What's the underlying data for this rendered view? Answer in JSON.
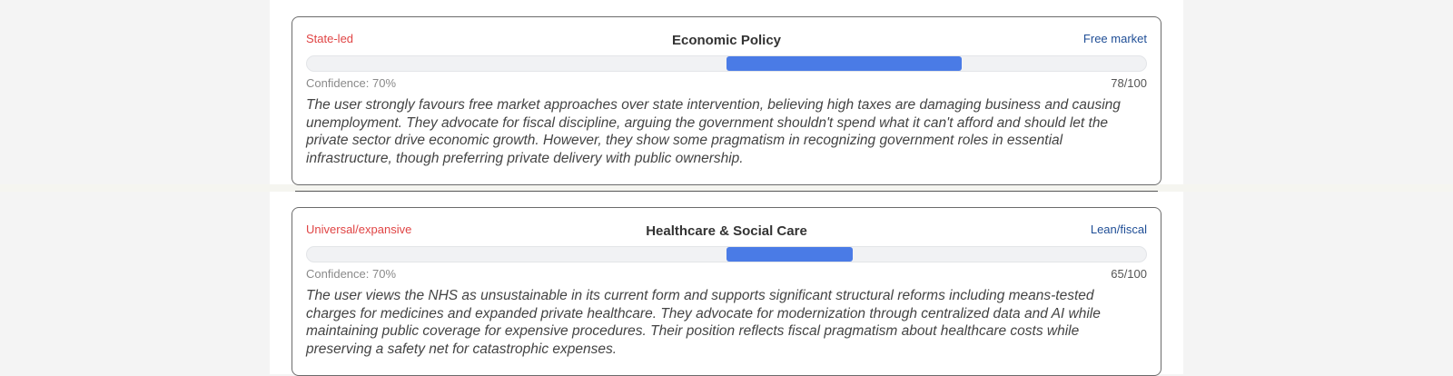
{
  "cards": [
    {
      "title": "Economic Policy",
      "left_pole": "State-led",
      "right_pole": "Free market",
      "confidence_label": "Confidence: 70%",
      "score_label": "78/100",
      "bar_fill": {
        "start": 0.5,
        "end": 0.78
      },
      "summary": "The user strongly favours free market approaches over state intervention, believing high taxes are damaging business and causing unemployment. They advocate for fiscal discipline, arguing the government shouldn't spend what it can't afford and should let the private sector drive economic growth. However, they show some pragmatism in recognizing government roles in essential infrastructure, though preferring private delivery with public ownership."
    },
    {
      "title": "Healthcare & Social Care",
      "left_pole": "Universal/expansive",
      "right_pole": "Lean/fiscal",
      "confidence_label": "Confidence: 70%",
      "score_label": "65/100",
      "bar_fill": {
        "start": 0.5,
        "end": 0.65
      },
      "summary": "The user views the NHS as unsustainable in its current form and supports significant structural reforms including means-tested charges for medicines and expanded private healthcare. They advocate for modernization through centralized data and AI while maintaining public coverage for expensive procedures. Their position reflects fiscal pragmatism about healthcare costs while preserving a safety net for catastrophic expenses."
    }
  ],
  "colors": {
    "left_pole": "#e04545",
    "right_pole": "#1f4e96",
    "bar_fill": "#4a7be6",
    "track": "#f1f2f4"
  }
}
